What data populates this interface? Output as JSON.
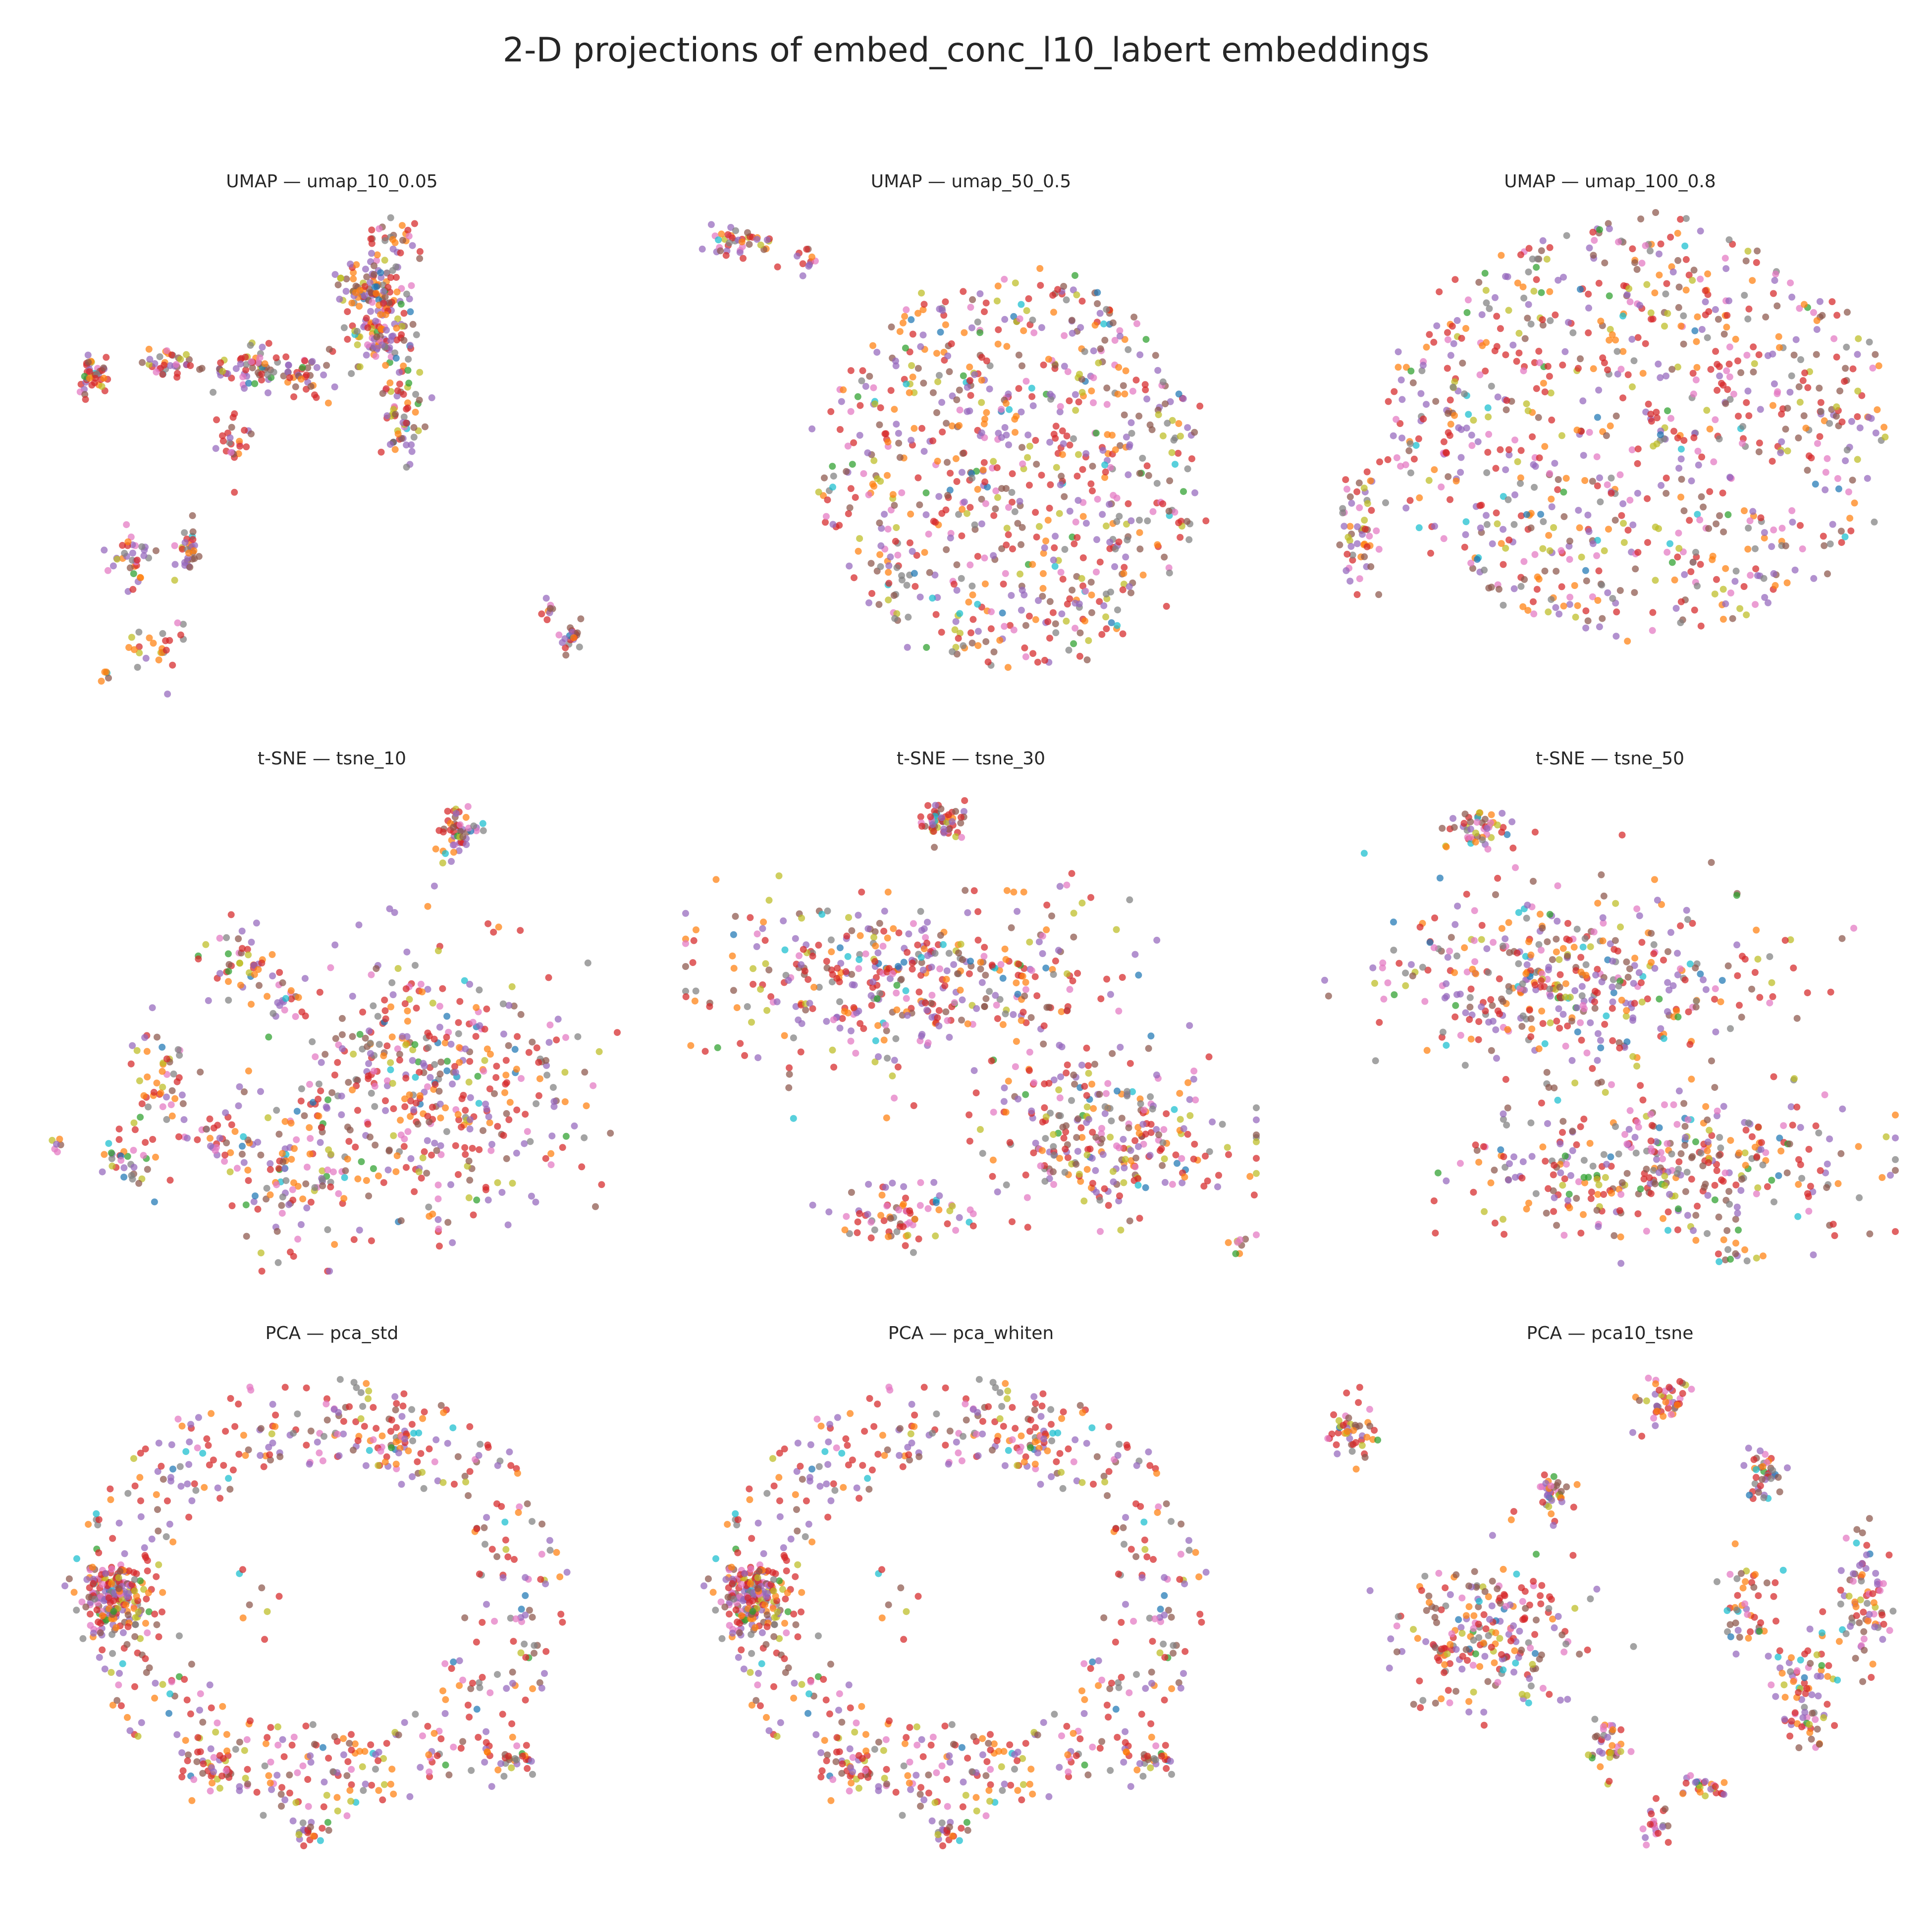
{
  "figure": {
    "title": "2-D projections of embed_conc_l10_labert embeddings"
  },
  "palette": [
    "#1f77b4",
    "#ff7f0e",
    "#2ca02c",
    "#d62728",
    "#9467bd",
    "#8c564b",
    "#e377c2",
    "#7f7f7f",
    "#bcbd22",
    "#17becf"
  ],
  "palette_weights": [
    0.02,
    0.13,
    0.02,
    0.24,
    0.19,
    0.13,
    0.1,
    0.08,
    0.07,
    0.02
  ],
  "chart_data": [
    {
      "type": "scatter",
      "title": "UMAP — umap_10_0.05",
      "axes_visible": false,
      "grid": false,
      "legend": "none",
      "xlim": [
        0,
        100
      ],
      "ylim": [
        0,
        100
      ],
      "seed": 11,
      "clusters": [
        {
          "cx": 57,
          "cy": 84,
          "rx": 5,
          "ry": 6,
          "n": 110
        },
        {
          "cx": 59,
          "cy": 74,
          "rx": 5,
          "ry": 5,
          "n": 80
        },
        {
          "cx": 62,
          "cy": 58,
          "rx": 3,
          "ry": 9,
          "n": 60
        },
        {
          "cx": 61,
          "cy": 94,
          "rx": 4,
          "ry": 3,
          "n": 25
        },
        {
          "cx": 45,
          "cy": 66,
          "rx": 6,
          "ry": 4,
          "n": 45
        },
        {
          "cx": 34,
          "cy": 68,
          "rx": 6,
          "ry": 4,
          "n": 50
        },
        {
          "cx": 22,
          "cy": 69,
          "rx": 5,
          "ry": 2.5,
          "n": 35
        },
        {
          "cx": 8,
          "cy": 66,
          "rx": 3,
          "ry": 4,
          "n": 40
        },
        {
          "cx": 33,
          "cy": 52,
          "rx": 3,
          "ry": 6,
          "n": 25
        },
        {
          "cx": 25,
          "cy": 30,
          "rx": 2,
          "ry": 5,
          "n": 30
        },
        {
          "cx": 15,
          "cy": 28,
          "rx": 3,
          "ry": 6,
          "n": 35
        },
        {
          "cx": 20,
          "cy": 10,
          "rx": 4,
          "ry": 6,
          "n": 25
        },
        {
          "cx": 92,
          "cy": 12,
          "rx": 1.5,
          "ry": 3,
          "n": 20
        },
        {
          "cx": 88,
          "cy": 17,
          "rx": 0.8,
          "ry": 2,
          "n": 8
        },
        {
          "cx": 10,
          "cy": 4,
          "rx": 1,
          "ry": 1,
          "n": 5
        }
      ]
    },
    {
      "type": "scatter",
      "title": "UMAP — umap_50_0.5",
      "axes_visible": false,
      "grid": false,
      "legend": "none",
      "xlim": [
        0,
        100
      ],
      "ylim": [
        0,
        100
      ],
      "seed": 23,
      "clusters": [
        {
          "ring": true,
          "cx": 57,
          "cy": 46,
          "rx": 33,
          "ry": 41,
          "inner": 0.0,
          "n": 750
        },
        {
          "cx": 9,
          "cy": 94,
          "rx": 6,
          "ry": 3,
          "n": 40
        },
        {
          "cx": 19,
          "cy": 90,
          "rx": 4,
          "ry": 2.5,
          "n": 12
        }
      ]
    },
    {
      "type": "scatter",
      "title": "UMAP — umap_100_0.8",
      "axes_visible": false,
      "grid": false,
      "legend": "none",
      "xlim": [
        0,
        100
      ],
      "ylim": [
        0,
        100
      ],
      "seed": 37,
      "clusters": [
        {
          "ring": true,
          "cx": 55,
          "cy": 55,
          "rx": 44,
          "ry": 44,
          "inner": 0.0,
          "n": 820
        },
        {
          "cx": 7,
          "cy": 37,
          "rx": 5,
          "ry": 14,
          "n": 55
        }
      ]
    },
    {
      "type": "scatter",
      "title": "t-SNE — tsne_10",
      "axes_visible": false,
      "grid": false,
      "legend": "none",
      "xlim": [
        0,
        100
      ],
      "ylim": [
        0,
        100
      ],
      "seed": 41,
      "clusters": [
        {
          "cx": 69,
          "cy": 38,
          "rx": 23,
          "ry": 26,
          "n": 420
        },
        {
          "cx": 43,
          "cy": 22,
          "rx": 9,
          "ry": 14,
          "n": 110
        },
        {
          "cx": 34,
          "cy": 63,
          "rx": 5,
          "ry": 7,
          "n": 45
        },
        {
          "cx": 20,
          "cy": 42,
          "rx": 5,
          "ry": 10,
          "n": 45
        },
        {
          "cx": 15,
          "cy": 24,
          "rx": 5,
          "ry": 8,
          "n": 35
        },
        {
          "cx": 30,
          "cy": 27,
          "rx": 6,
          "ry": 5,
          "n": 30
        },
        {
          "cx": 42,
          "cy": 56,
          "rx": 4,
          "ry": 5,
          "n": 20
        },
        {
          "cx": 72,
          "cy": 91,
          "rx": 4,
          "ry": 5,
          "n": 50
        },
        {
          "cx": 2,
          "cy": 26,
          "rx": 1,
          "ry": 2,
          "n": 6
        }
      ]
    },
    {
      "type": "scatter",
      "title": "t-SNE — tsne_30",
      "axes_visible": false,
      "grid": false,
      "legend": "none",
      "xlim": [
        0,
        100
      ],
      "ylim": [
        0,
        100
      ],
      "seed": 53,
      "clusters": [
        {
          "cx": 38,
          "cy": 60,
          "rx": 33,
          "ry": 15,
          "n": 430
        },
        {
          "cx": 72,
          "cy": 28,
          "rx": 22,
          "ry": 15,
          "n": 280
        },
        {
          "cx": 38,
          "cy": 12,
          "rx": 10,
          "ry": 6,
          "n": 70
        },
        {
          "cx": 45,
          "cy": 94,
          "rx": 4,
          "ry": 4,
          "n": 55
        },
        {
          "cx": 97,
          "cy": 5,
          "rx": 2,
          "ry": 1.5,
          "n": 8
        }
      ]
    },
    {
      "type": "scatter",
      "title": "t-SNE — tsne_50",
      "axes_visible": false,
      "grid": false,
      "legend": "none",
      "xlim": [
        0,
        100
      ],
      "ylim": [
        0,
        100
      ],
      "seed": 67,
      "clusters": [
        {
          "cx": 44,
          "cy": 60,
          "rx": 30,
          "ry": 17,
          "n": 430
        },
        {
          "cx": 60,
          "cy": 22,
          "rx": 32,
          "ry": 13,
          "n": 360
        },
        {
          "cx": 27,
          "cy": 92,
          "rx": 5,
          "ry": 4,
          "n": 50
        },
        {
          "cx": 73,
          "cy": 3,
          "rx": 4,
          "ry": 1.5,
          "n": 10
        }
      ]
    },
    {
      "type": "scatter",
      "title": "PCA — pca_std",
      "axes_visible": false,
      "grid": false,
      "legend": "none",
      "xlim": [
        0,
        100
      ],
      "ylim": [
        0,
        100
      ],
      "seed": 79,
      "clusters": [
        {
          "ring": true,
          "cx": 48,
          "cy": 52,
          "rx": 43,
          "ry": 45,
          "inner": 0.62,
          "n": 520
        },
        {
          "cx": 12,
          "cy": 52,
          "rx": 5,
          "ry": 7,
          "n": 180
        },
        {
          "cx": 30,
          "cy": 15,
          "rx": 6,
          "ry": 4,
          "n": 30
        },
        {
          "cx": 82,
          "cy": 18,
          "rx": 5,
          "ry": 4,
          "n": 30
        },
        {
          "cx": 62,
          "cy": 84,
          "rx": 5,
          "ry": 4,
          "n": 25
        },
        {
          "cx": 45,
          "cy": 3,
          "rx": 4,
          "ry": 3,
          "n": 20
        },
        {
          "cx": 37,
          "cy": 51,
          "rx": 4,
          "ry": 8,
          "n": 8
        }
      ]
    },
    {
      "type": "scatter",
      "title": "PCA — pca_whiten",
      "axes_visible": false,
      "grid": false,
      "legend": "none",
      "xlim": [
        0,
        100
      ],
      "ylim": [
        0,
        100
      ],
      "seed": 79,
      "clusters": [
        {
          "ring": true,
          "cx": 48,
          "cy": 52,
          "rx": 43,
          "ry": 45,
          "inner": 0.62,
          "n": 520
        },
        {
          "cx": 12,
          "cy": 52,
          "rx": 5,
          "ry": 7,
          "n": 180
        },
        {
          "cx": 30,
          "cy": 15,
          "rx": 6,
          "ry": 4,
          "n": 30
        },
        {
          "cx": 82,
          "cy": 18,
          "rx": 5,
          "ry": 4,
          "n": 30
        },
        {
          "cx": 62,
          "cy": 84,
          "rx": 5,
          "ry": 4,
          "n": 25
        },
        {
          "cx": 45,
          "cy": 3,
          "rx": 4,
          "ry": 3,
          "n": 20
        },
        {
          "cx": 37,
          "cy": 51,
          "rx": 4,
          "ry": 8,
          "n": 8
        }
      ]
    },
    {
      "type": "scatter",
      "title": "PCA — pca10_tsne",
      "axes_visible": false,
      "grid": false,
      "legend": "none",
      "xlim": [
        0,
        100
      ],
      "ylim": [
        0,
        100
      ],
      "seed": 97,
      "clusters": [
        {
          "cx": 5,
          "cy": 86,
          "rx": 4,
          "ry": 7,
          "n": 45
        },
        {
          "cx": 59,
          "cy": 92,
          "rx": 4,
          "ry": 5,
          "n": 45
        },
        {
          "cx": 28,
          "cy": 44,
          "rx": 14,
          "ry": 14,
          "n": 220
        },
        {
          "cx": 40,
          "cy": 73,
          "rx": 3,
          "ry": 5,
          "n": 35
        },
        {
          "cx": 77,
          "cy": 78,
          "rx": 3,
          "ry": 6,
          "n": 40
        },
        {
          "cx": 74,
          "cy": 50,
          "rx": 4,
          "ry": 9,
          "n": 45
        },
        {
          "cx": 95,
          "cy": 51,
          "rx": 4,
          "ry": 13,
          "n": 75
        },
        {
          "cx": 84,
          "cy": 34,
          "rx": 5,
          "ry": 10,
          "n": 60
        },
        {
          "cx": 50,
          "cy": 20,
          "rx": 3,
          "ry": 6,
          "n": 35
        },
        {
          "cx": 67,
          "cy": 13,
          "rx": 4,
          "ry": 3,
          "n": 25
        },
        {
          "cx": 58,
          "cy": 5,
          "rx": 2,
          "ry": 5,
          "n": 20
        },
        {
          "cx": 86,
          "cy": 25,
          "rx": 4,
          "ry": 3,
          "n": 20
        }
      ]
    }
  ]
}
